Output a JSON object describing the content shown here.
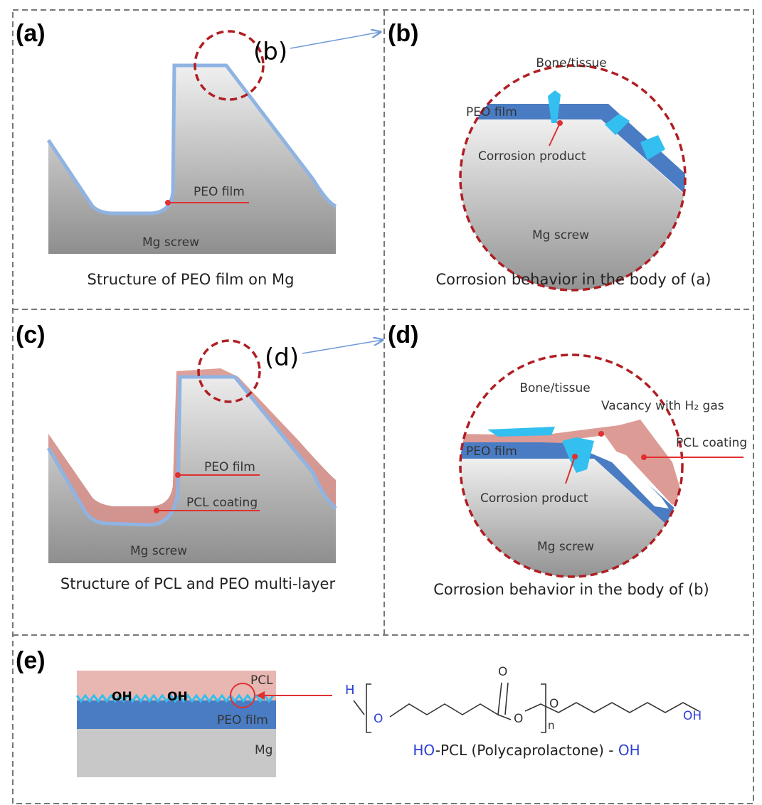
{
  "panels": {
    "a": {
      "label": "(a)",
      "callout": "(b)",
      "film": "PEO film",
      "substrate": "Mg screw",
      "caption": "Structure of PEO film on Mg"
    },
    "b": {
      "label": "(b)",
      "environment": "Bone/tissue",
      "film": "PEO film",
      "product": "Corrosion product",
      "substrate": "Mg screw",
      "caption": "Corrosion behavior in the body of (a)"
    },
    "c": {
      "label": "(c)",
      "callout": "(d)",
      "film": "PEO film",
      "coating": "PCL coating",
      "substrate": "Mg screw",
      "caption": "Structure of PCL and PEO multi-layer"
    },
    "d": {
      "label": "(d)",
      "environment": "Bone/tissue",
      "vacancy": "Vacancy with H₂ gas",
      "coating": "PCL coating",
      "film": "PEO film",
      "product": "Corrosion product",
      "substrate": "Mg screw",
      "caption": "Corrosion behavior in the body of (b)"
    },
    "e": {
      "label": "(e)",
      "layers": {
        "coating": "PCL",
        "groups": [
          "OH",
          "OH"
        ],
        "film": "PEO film",
        "substrate": "Mg"
      },
      "formula": {
        "atoms": [
          "H",
          "O",
          "O",
          "O",
          "O",
          "OH"
        ],
        "repeat": "n",
        "name": [
          "HO",
          "-PCL (Polycaprolactone) - ",
          "OH"
        ]
      }
    }
  }
}
